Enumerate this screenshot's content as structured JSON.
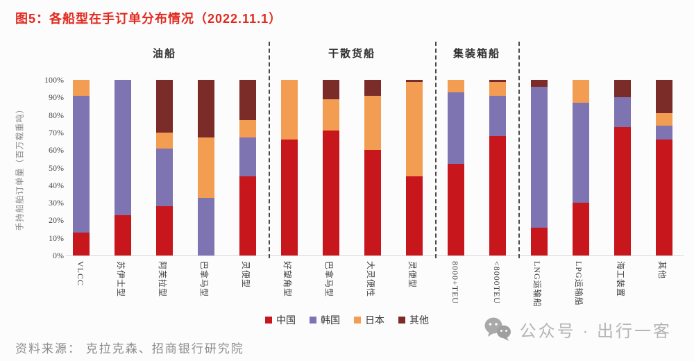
{
  "title": "图5：各船型在手订单分布情况（2022.11.1）",
  "source": "资料来源： 克拉克森、招商银行研究院",
  "watermark": {
    "icon": "wechat-icon",
    "text": "公众号 · 出行一客"
  },
  "chart_data": {
    "type": "bar",
    "stacked": true,
    "unit": "%",
    "title": "各船型在手订单分布情况（2022.11.1）",
    "ylabel": "手持船舶订单量（百万载重吨）",
    "ylim": [
      0,
      100
    ],
    "y_ticks": [
      "0%",
      "10%",
      "20%",
      "30%",
      "40%",
      "50%",
      "60%",
      "70%",
      "80%",
      "90%",
      "100%"
    ],
    "grid": false,
    "legend_position": "bottom",
    "groups": [
      {
        "name": "油船",
        "categories": [
          "VLCC",
          "苏伊士型",
          "阿芙拉型",
          "巴拿马型",
          "灵便型"
        ]
      },
      {
        "name": "干散货船",
        "categories": [
          "好望角型",
          "巴拿马型",
          "大灵便性",
          "灵便型"
        ]
      },
      {
        "name": "集装箱船",
        "categories": [
          "8000+TEU",
          "<8000TEU"
        ]
      },
      {
        "name": "",
        "categories": [
          "LNG运输船",
          "LPG运输船",
          "海工装置",
          "其他"
        ]
      }
    ],
    "series": [
      {
        "name": "中国",
        "color": "#C8161D",
        "values": [
          13,
          23,
          28,
          0,
          45,
          66,
          71,
          60,
          45,
          52,
          68,
          16,
          30,
          73,
          66
        ]
      },
      {
        "name": "韩国",
        "color": "#7E74B2",
        "values": [
          78,
          77,
          33,
          33,
          22,
          0,
          0,
          0,
          0,
          41,
          23,
          80,
          57,
          17,
          8
        ]
      },
      {
        "name": "日本",
        "color": "#F29D52",
        "values": [
          9,
          0,
          9,
          34,
          10,
          34,
          18,
          31,
          54,
          7,
          8,
          0,
          13,
          0,
          7
        ]
      },
      {
        "name": "其他",
        "color": "#7B2B28",
        "values": [
          0,
          0,
          30,
          33,
          23,
          0,
          11,
          9,
          1,
          0,
          1,
          4,
          0,
          10,
          19
        ]
      }
    ]
  }
}
